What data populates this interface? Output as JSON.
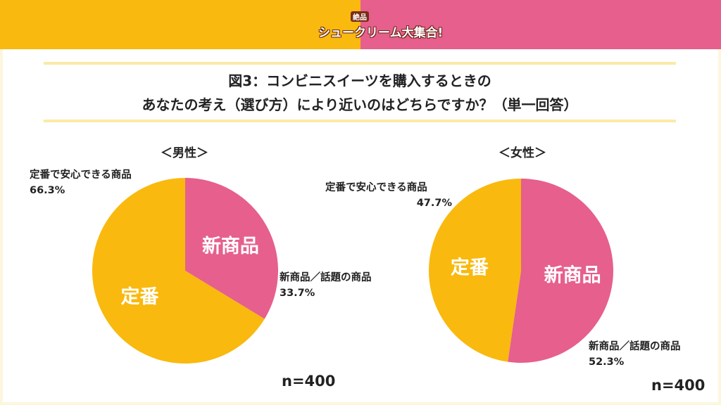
{
  "header": {
    "logo_small": "絶品",
    "logo_text": "シュークリーム大集合!",
    "colors": {
      "left": "#f9b90e",
      "right": "#e65f8d"
    }
  },
  "title": {
    "line1": "図3：コンビニスイーツを購入するときの",
    "line2": "あなたの考え（選び方）により近いのはどちらですか？（単一回答）"
  },
  "chart_data": [
    {
      "type": "pie",
      "title": "＜男性＞",
      "categories": [
        "新商品／話題の商品",
        "定番で安心できる商品"
      ],
      "values": [
        33.7,
        66.3
      ],
      "unit": "%",
      "slice_labels": [
        "新商品",
        "定番"
      ],
      "value_labels": [
        "33.7%",
        "66.3%"
      ],
      "colors": [
        "#e65f8d",
        "#f9b90e"
      ],
      "n": "n=400"
    },
    {
      "type": "pie",
      "title": "＜女性＞",
      "categories": [
        "新商品／話題の商品",
        "定番で安心できる商品"
      ],
      "values": [
        52.3,
        47.7
      ],
      "unit": "%",
      "slice_labels": [
        "新商品",
        "定番"
      ],
      "value_labels": [
        "52.3%",
        "47.7%"
      ],
      "colors": [
        "#e65f8d",
        "#f9b90e"
      ],
      "n": "n=400"
    }
  ]
}
